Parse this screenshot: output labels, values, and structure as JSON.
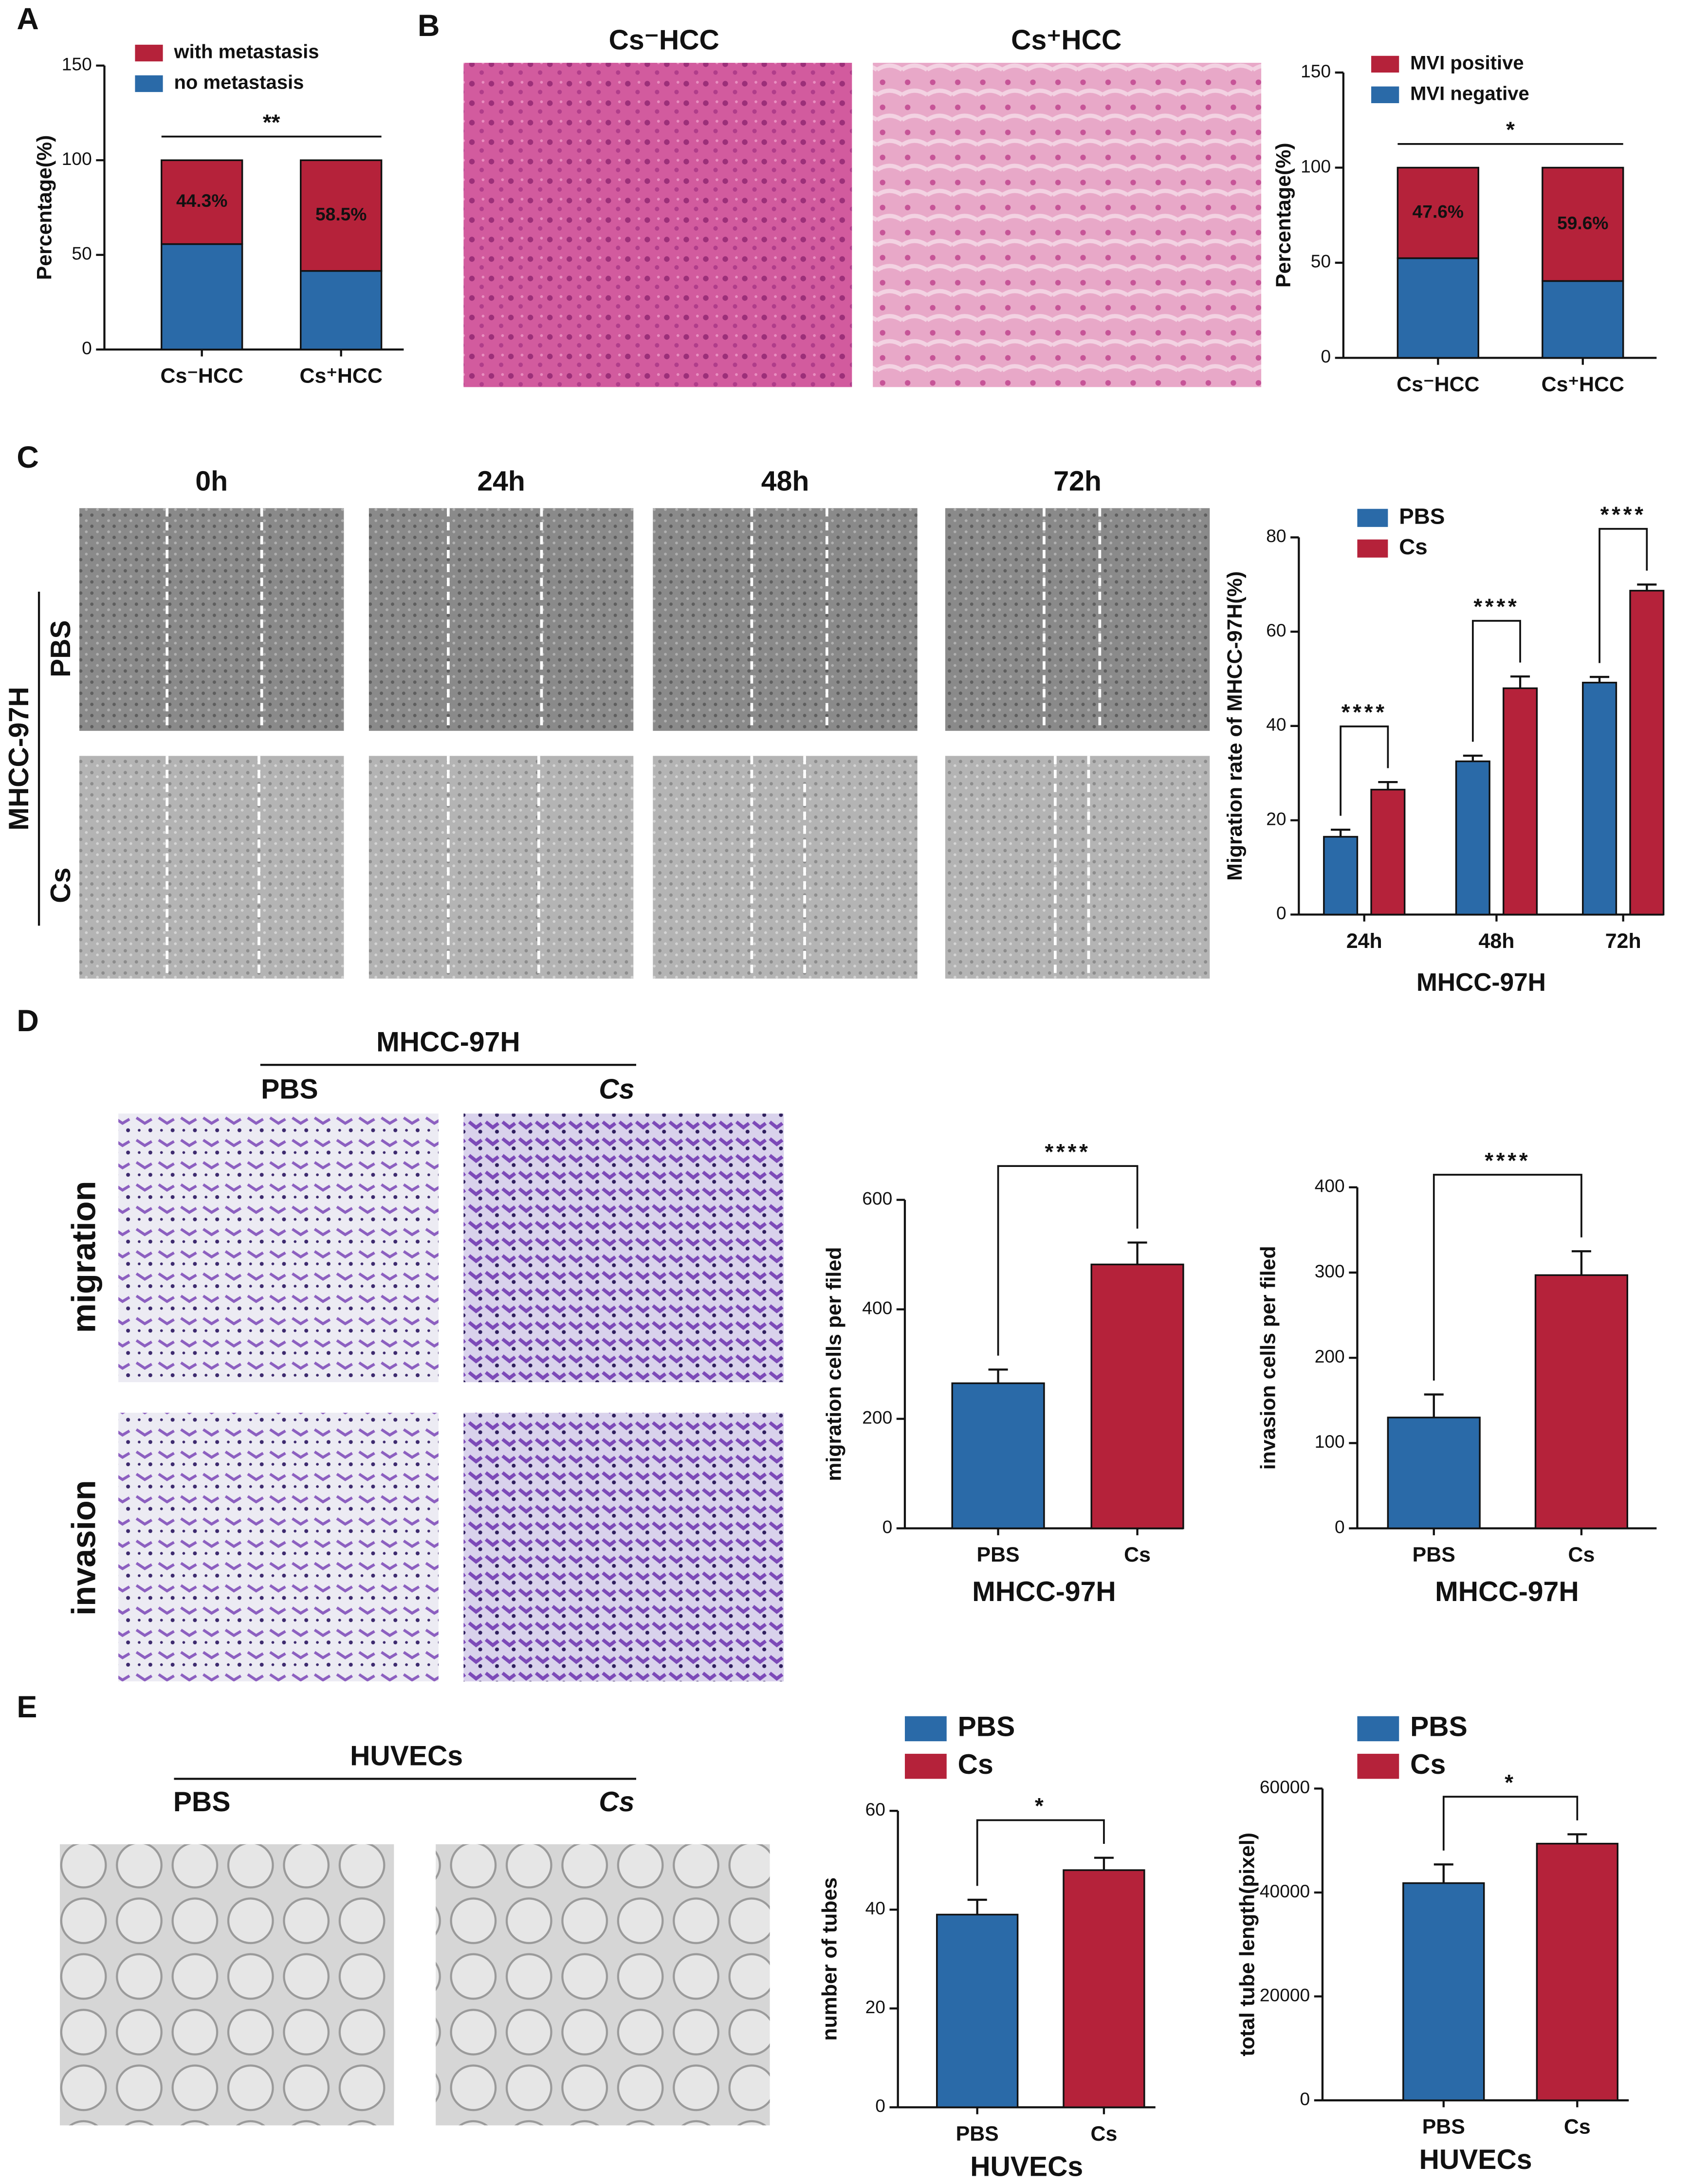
{
  "figure": {
    "panel_letters": [
      "A",
      "B",
      "C",
      "D",
      "E"
    ],
    "panel_b": {
      "image_titles": [
        "Cs⁻HCC",
        "Cs⁺HCC"
      ]
    },
    "panel_c": {
      "time_points": [
        "0h",
        "24h",
        "48h",
        "72h"
      ],
      "row_labels": [
        "PBS",
        "Cs"
      ],
      "cell_line": "MHCC-97H"
    },
    "panel_d": {
      "cell_line": "MHCC-97H",
      "columns": [
        "PBS",
        "Cs"
      ],
      "rows": [
        "migration",
        "invasion"
      ]
    },
    "panel_e": {
      "cell_line": "HUVECs",
      "columns": [
        "PBS",
        "Cs"
      ]
    }
  },
  "chart_data": [
    {
      "type": "bar",
      "stacked": true,
      "ylabel": "Percentage(%)",
      "categories": [
        "Cs⁻HCC",
        "Cs⁺HCC"
      ],
      "series": [
        {
          "name": "no metastasis",
          "color": "#2a6aa8",
          "values": [
            55.7,
            41.5
          ]
        },
        {
          "name": "with metastasis",
          "color": "#b5223a",
          "values": [
            44.3,
            58.5
          ],
          "value_labels": [
            "44.3%",
            "58.5%"
          ]
        }
      ],
      "ylim": [
        0,
        150
      ],
      "yticks": [
        0,
        50,
        100,
        150
      ],
      "annotation": "**",
      "legend": "top-left"
    },
    {
      "type": "bar",
      "stacked": true,
      "ylabel": "Percentage(%)",
      "categories": [
        "Cs⁻HCC",
        "Cs⁺HCC"
      ],
      "series": [
        {
          "name": "MVI negative",
          "color": "#2a6aa8",
          "values": [
            52.4,
            40.4
          ]
        },
        {
          "name": "MVI positive",
          "color": "#b5223a",
          "values": [
            47.6,
            59.6
          ],
          "value_labels": [
            "47.6%",
            "59.6%"
          ]
        }
      ],
      "ylim": [
        0,
        150
      ],
      "yticks": [
        0,
        50,
        100,
        150
      ],
      "annotation": "*",
      "legend": "top-left"
    },
    {
      "type": "bar",
      "ylabel": "Migration rate of MHCC-97H(%)",
      "xlabel": "MHCC-97H",
      "categories": [
        "24h",
        "48h",
        "72h"
      ],
      "series": [
        {
          "name": "PBS",
          "color": "#2a6aa8",
          "values": [
            16.5,
            32.5,
            49.2
          ],
          "errors": [
            1.5,
            1.2,
            1.2
          ]
        },
        {
          "name": "Cs",
          "color": "#b5223a",
          "values": [
            26.5,
            48,
            68.7
          ],
          "errors": [
            1.6,
            2.5,
            1.3
          ]
        }
      ],
      "ylim": [
        0,
        80
      ],
      "yticks": [
        0,
        20,
        40,
        60,
        80
      ],
      "annotations": [
        "****",
        "****",
        "****"
      ],
      "legend": "top"
    },
    {
      "type": "bar",
      "ylabel": "migration cells per filed",
      "xlabel": "MHCC-97H",
      "categories": [
        "PBS",
        "Cs"
      ],
      "values": [
        265,
        482
      ],
      "errors": [
        25,
        40
      ],
      "colors": [
        "#2a6aa8",
        "#b5223a"
      ],
      "ylim": [
        0,
        600
      ],
      "yticks": [
        0,
        200,
        400,
        600
      ],
      "annotation": "****"
    },
    {
      "type": "bar",
      "ylabel": "invasion  cells per filed",
      "xlabel": "MHCC-97H",
      "categories": [
        "PBS",
        "Cs"
      ],
      "values": [
        130,
        297
      ],
      "errors": [
        27,
        28
      ],
      "colors": [
        "#2a6aa8",
        "#b5223a"
      ],
      "ylim": [
        0,
        400
      ],
      "yticks": [
        0,
        100,
        200,
        300,
        400
      ],
      "annotation": "****"
    },
    {
      "type": "bar",
      "ylabel": "number of tubes",
      "xlabel": "HUVECs",
      "categories": [
        "PBS",
        "Cs"
      ],
      "values": [
        39,
        48
      ],
      "errors": [
        3,
        2.5
      ],
      "colors": [
        "#2a6aa8",
        "#b5223a"
      ],
      "ylim": [
        0,
        60
      ],
      "yticks": [
        0,
        20,
        40,
        60
      ],
      "annotation": "*",
      "legend": "top"
    },
    {
      "type": "bar",
      "ylabel": "total tube length(pixel)",
      "xlabel": "HUVECs",
      "categories": [
        "PBS",
        "Cs"
      ],
      "values": [
        41800,
        49400
      ],
      "errors": [
        3600,
        1800
      ],
      "colors": [
        "#2a6aa8",
        "#b5223a"
      ],
      "ylim": [
        0,
        60000
      ],
      "yticks": [
        0,
        20000,
        40000,
        60000
      ],
      "annotation": "*",
      "legend": "top"
    }
  ]
}
